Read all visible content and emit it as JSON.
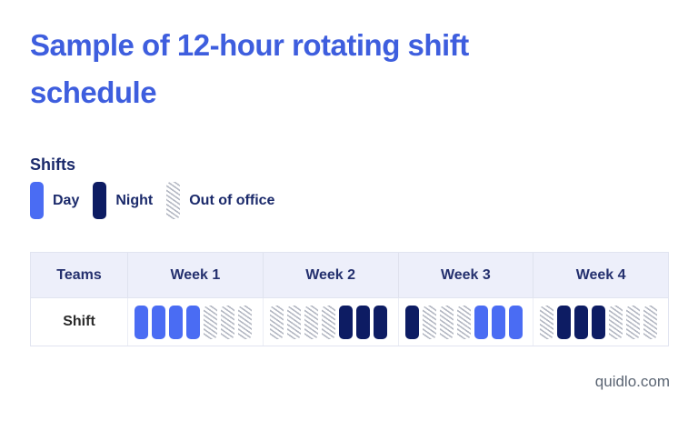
{
  "title": {
    "lines": [
      "Sample of 12-hour rotating shift",
      "schedule"
    ]
  },
  "legend": {
    "heading": "Shifts",
    "items": [
      {
        "label": "Day",
        "type": "day"
      },
      {
        "label": "Night",
        "type": "night"
      },
      {
        "label": "Out of office",
        "type": "ooo"
      }
    ]
  },
  "table": {
    "columns": [
      "Teams",
      "Week 1",
      "Week 2",
      "Week 3",
      "Week 4"
    ],
    "row_label": "Shift",
    "weeks": [
      {
        "name": "Week 1",
        "days": [
          "day",
          "day",
          "day",
          "day",
          "ooo",
          "ooo",
          "ooo"
        ]
      },
      {
        "name": "Week 2",
        "days": [
          "ooo",
          "ooo",
          "ooo",
          "ooo",
          "night",
          "night",
          "night"
        ]
      },
      {
        "name": "Week 3",
        "days": [
          "night",
          "ooo",
          "ooo",
          "ooo",
          "day",
          "day",
          "day"
        ]
      },
      {
        "name": "Week 4",
        "days": [
          "ooo",
          "night",
          "night",
          "night",
          "ooo",
          "ooo",
          "ooo"
        ]
      }
    ]
  },
  "footer": {
    "site": "quidlo.com"
  },
  "colors": {
    "title_blue": "#3e5ede",
    "day_blue": "#4a6cf3",
    "night_navy": "#0d1c63",
    "hatch_gray": "#b4b8c3",
    "header_bg": "#edeffa",
    "text_navy": "#1b2a6b"
  }
}
